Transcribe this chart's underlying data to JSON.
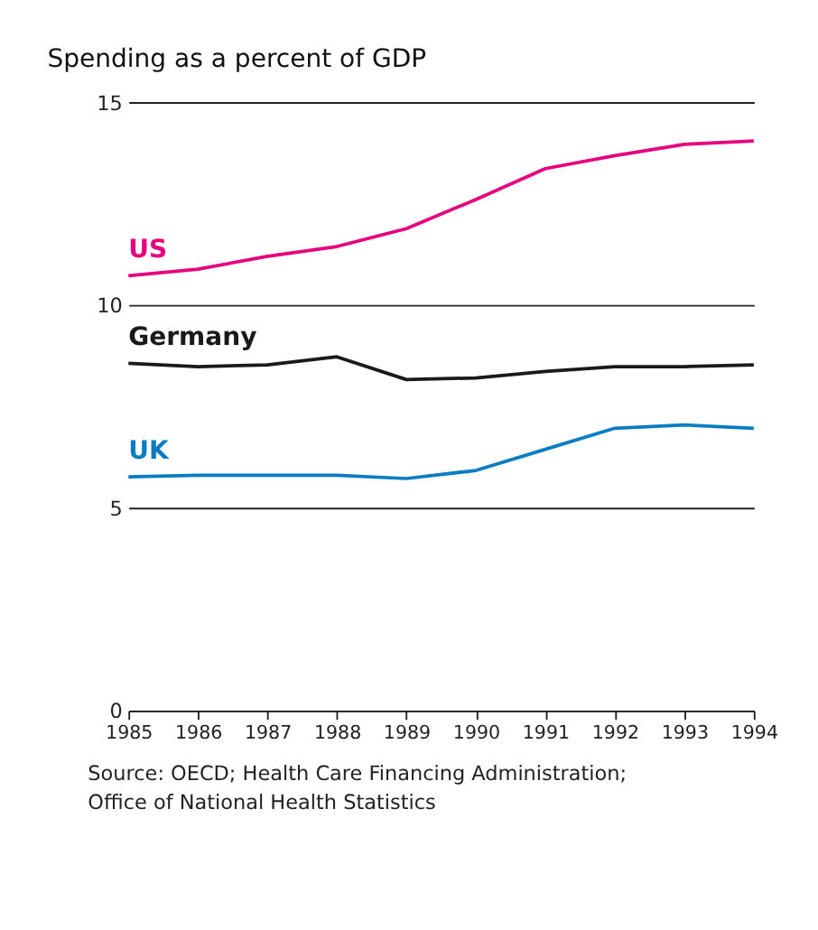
{
  "chart_data": {
    "type": "line",
    "title": "Spending as a percent of GDP",
    "x": [
      1985,
      1986,
      1987,
      1988,
      1989,
      1990,
      1991,
      1992,
      1993,
      1994
    ],
    "series": [
      {
        "name": "US",
        "color": "#e6007e",
        "values": [
          10.72,
          10.88,
          11.2,
          11.44,
          11.88,
          12.6,
          13.36,
          13.68,
          13.96,
          14.04
        ]
      },
      {
        "name": "Germany",
        "color": "#1a1a1a",
        "values": [
          8.56,
          8.48,
          8.52,
          8.72,
          8.16,
          8.2,
          8.36,
          8.48,
          8.48,
          8.52
        ]
      },
      {
        "name": "UK",
        "color": "#0a7cc1",
        "values": [
          5.76,
          5.8,
          5.8,
          5.8,
          5.72,
          5.92,
          6.44,
          6.96,
          7.04,
          6.96
        ]
      }
    ],
    "xlim": [
      1985,
      1994
    ],
    "xticks": [
      1985,
      1986,
      1987,
      1988,
      1989,
      1990,
      1991,
      1992,
      1993,
      1994
    ],
    "ylim": [
      0,
      15
    ],
    "yticks": [
      0,
      5,
      10,
      15
    ],
    "grid": "y",
    "legend": false,
    "marker": "none",
    "line_style": "solid",
    "annotations": [
      "Source: OECD; Health Care Financing Administration;",
      "Office of National Health Statistics"
    ]
  }
}
